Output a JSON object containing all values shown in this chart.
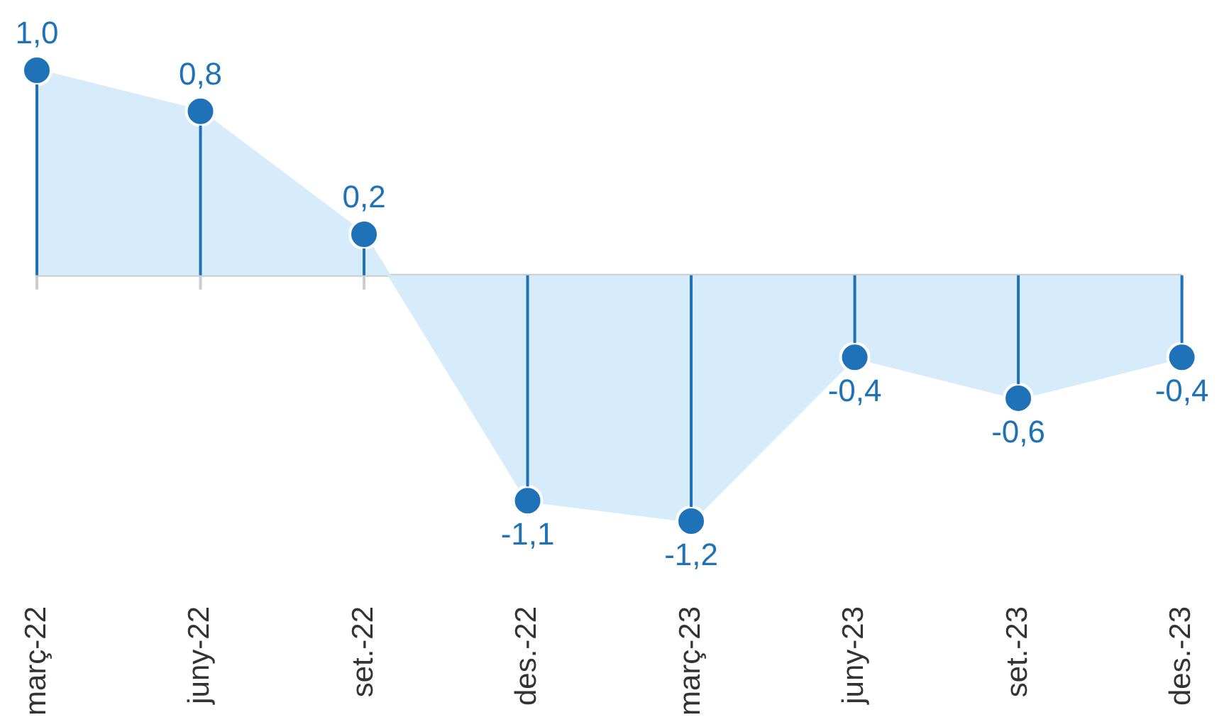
{
  "chart_data": {
    "type": "lollipop",
    "categories": [
      "març-22",
      "juny-22",
      "set.-22",
      "des.-22",
      "març-23",
      "juny-23",
      "set.-23",
      "des.-23"
    ],
    "series": [
      {
        "type": "area",
        "color": "#d6ecfa",
        "marker": "none",
        "values": [
          1.0,
          0.8,
          0.2,
          -1.1,
          -1.2,
          -0.4,
          -0.6,
          -0.4
        ]
      },
      {
        "color": "#1f72b8",
        "marker": "circle",
        "values": [
          1.0,
          0.8,
          0.2,
          -1.1,
          -1.2,
          -0.4,
          -0.6,
          -0.4
        ],
        "value_labels": [
          "1,0",
          "0,8",
          "0,2",
          "-1,1",
          "-1,2",
          "-0,4",
          "-0,6",
          "-0,4"
        ]
      }
    ],
    "grid": false,
    "legend": false
  }
}
